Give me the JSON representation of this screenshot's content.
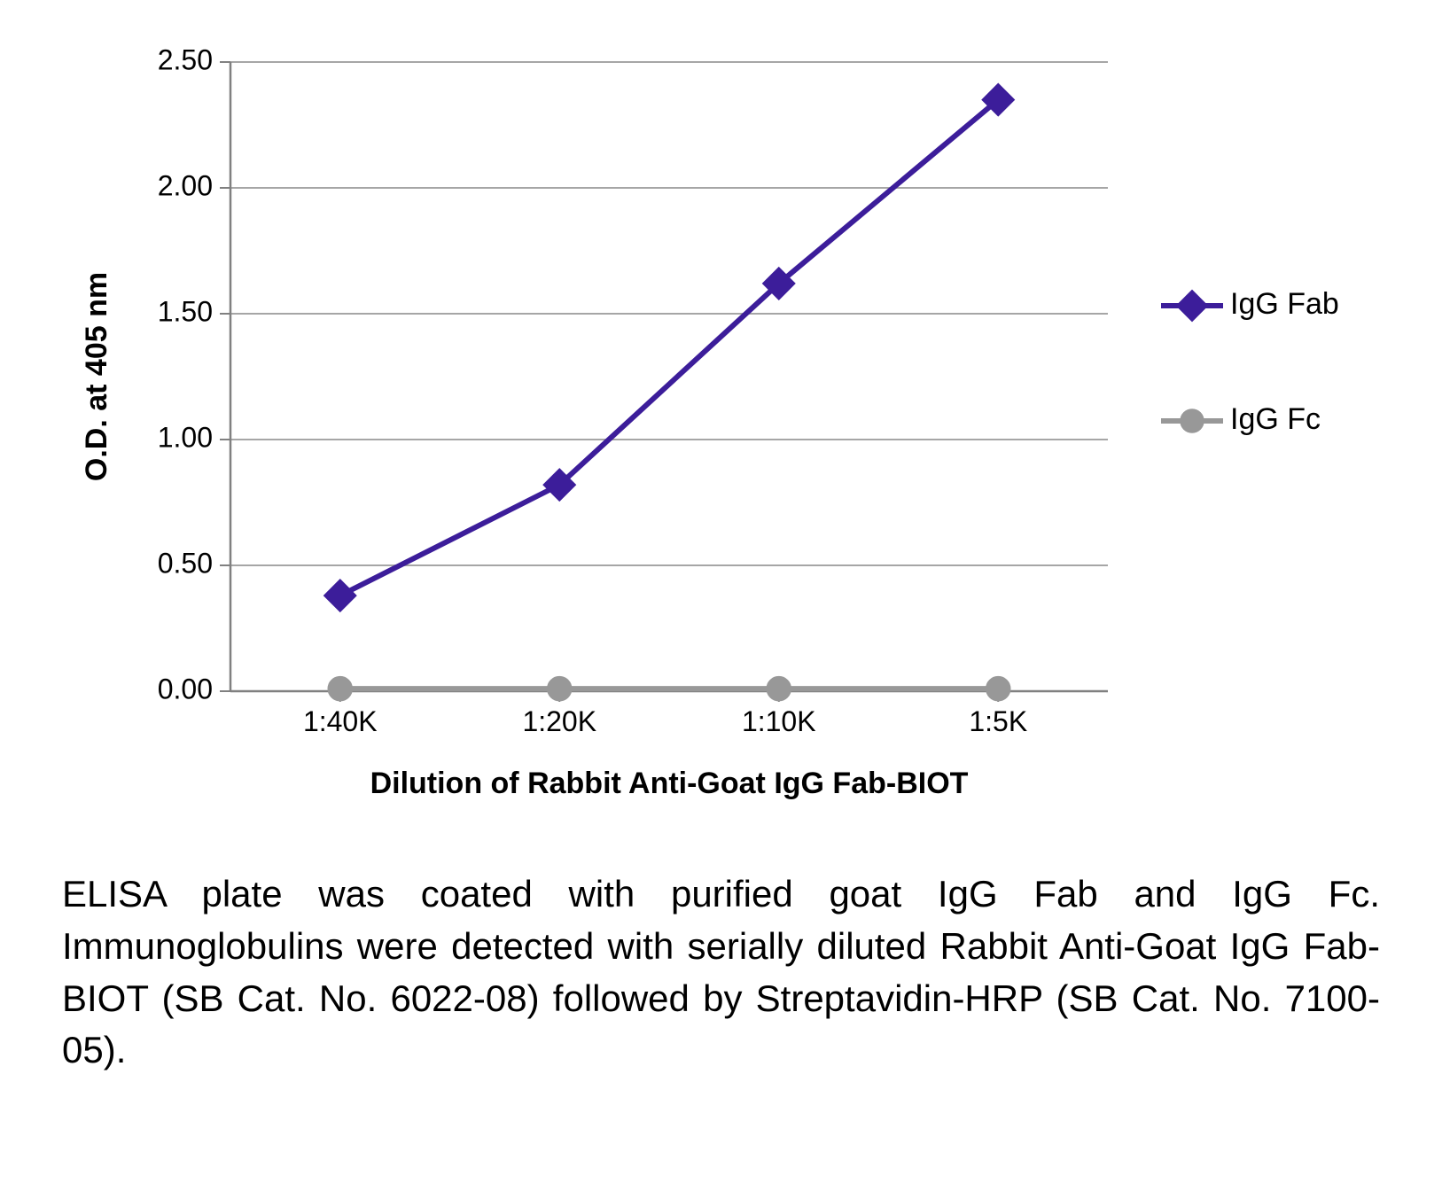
{
  "chart": {
    "type": "line",
    "background_color": "#ffffff",
    "plot_border_color": "#a6a6a6",
    "grid_color": "#a6a6a6",
    "axis_line_color": "#808080",
    "tick_color": "#808080",
    "y_axis": {
      "title": "O.D. at 405 nm",
      "min": 0.0,
      "max": 2.5,
      "tick_step": 0.5,
      "ticks": [
        "0.00",
        "0.50",
        "1.00",
        "1.50",
        "2.00",
        "2.50"
      ]
    },
    "x_axis": {
      "title": "Dilution of Rabbit Anti-Goat IgG Fab-BIOT",
      "categories": [
        "1:40K",
        "1:20K",
        "1:10K",
        "1:5K"
      ]
    },
    "series": [
      {
        "name": "IgG Fab",
        "color": "#3c1d9a",
        "marker": "diamond",
        "marker_size": 22,
        "line_width": 6,
        "values": [
          0.38,
          0.82,
          1.62,
          2.35
        ]
      },
      {
        "name": "IgG Fc",
        "color": "#989898",
        "marker": "circle",
        "marker_size": 22,
        "line_width": 6,
        "values": [
          0.01,
          0.01,
          0.01,
          0.01
        ]
      }
    ],
    "legend": {
      "position": "right"
    },
    "label_fontsize": 32,
    "axis_title_fontsize": 34
  },
  "caption": "ELISA plate was coated with purified goat IgG Fab and IgG Fc. Immunoglobulins were detected with serially diluted Rabbit Anti-Goat IgG Fab-BIOT (SB Cat. No. 6022-08) followed by Streptavidin-HRP (SB Cat. No. 7100-05)."
}
